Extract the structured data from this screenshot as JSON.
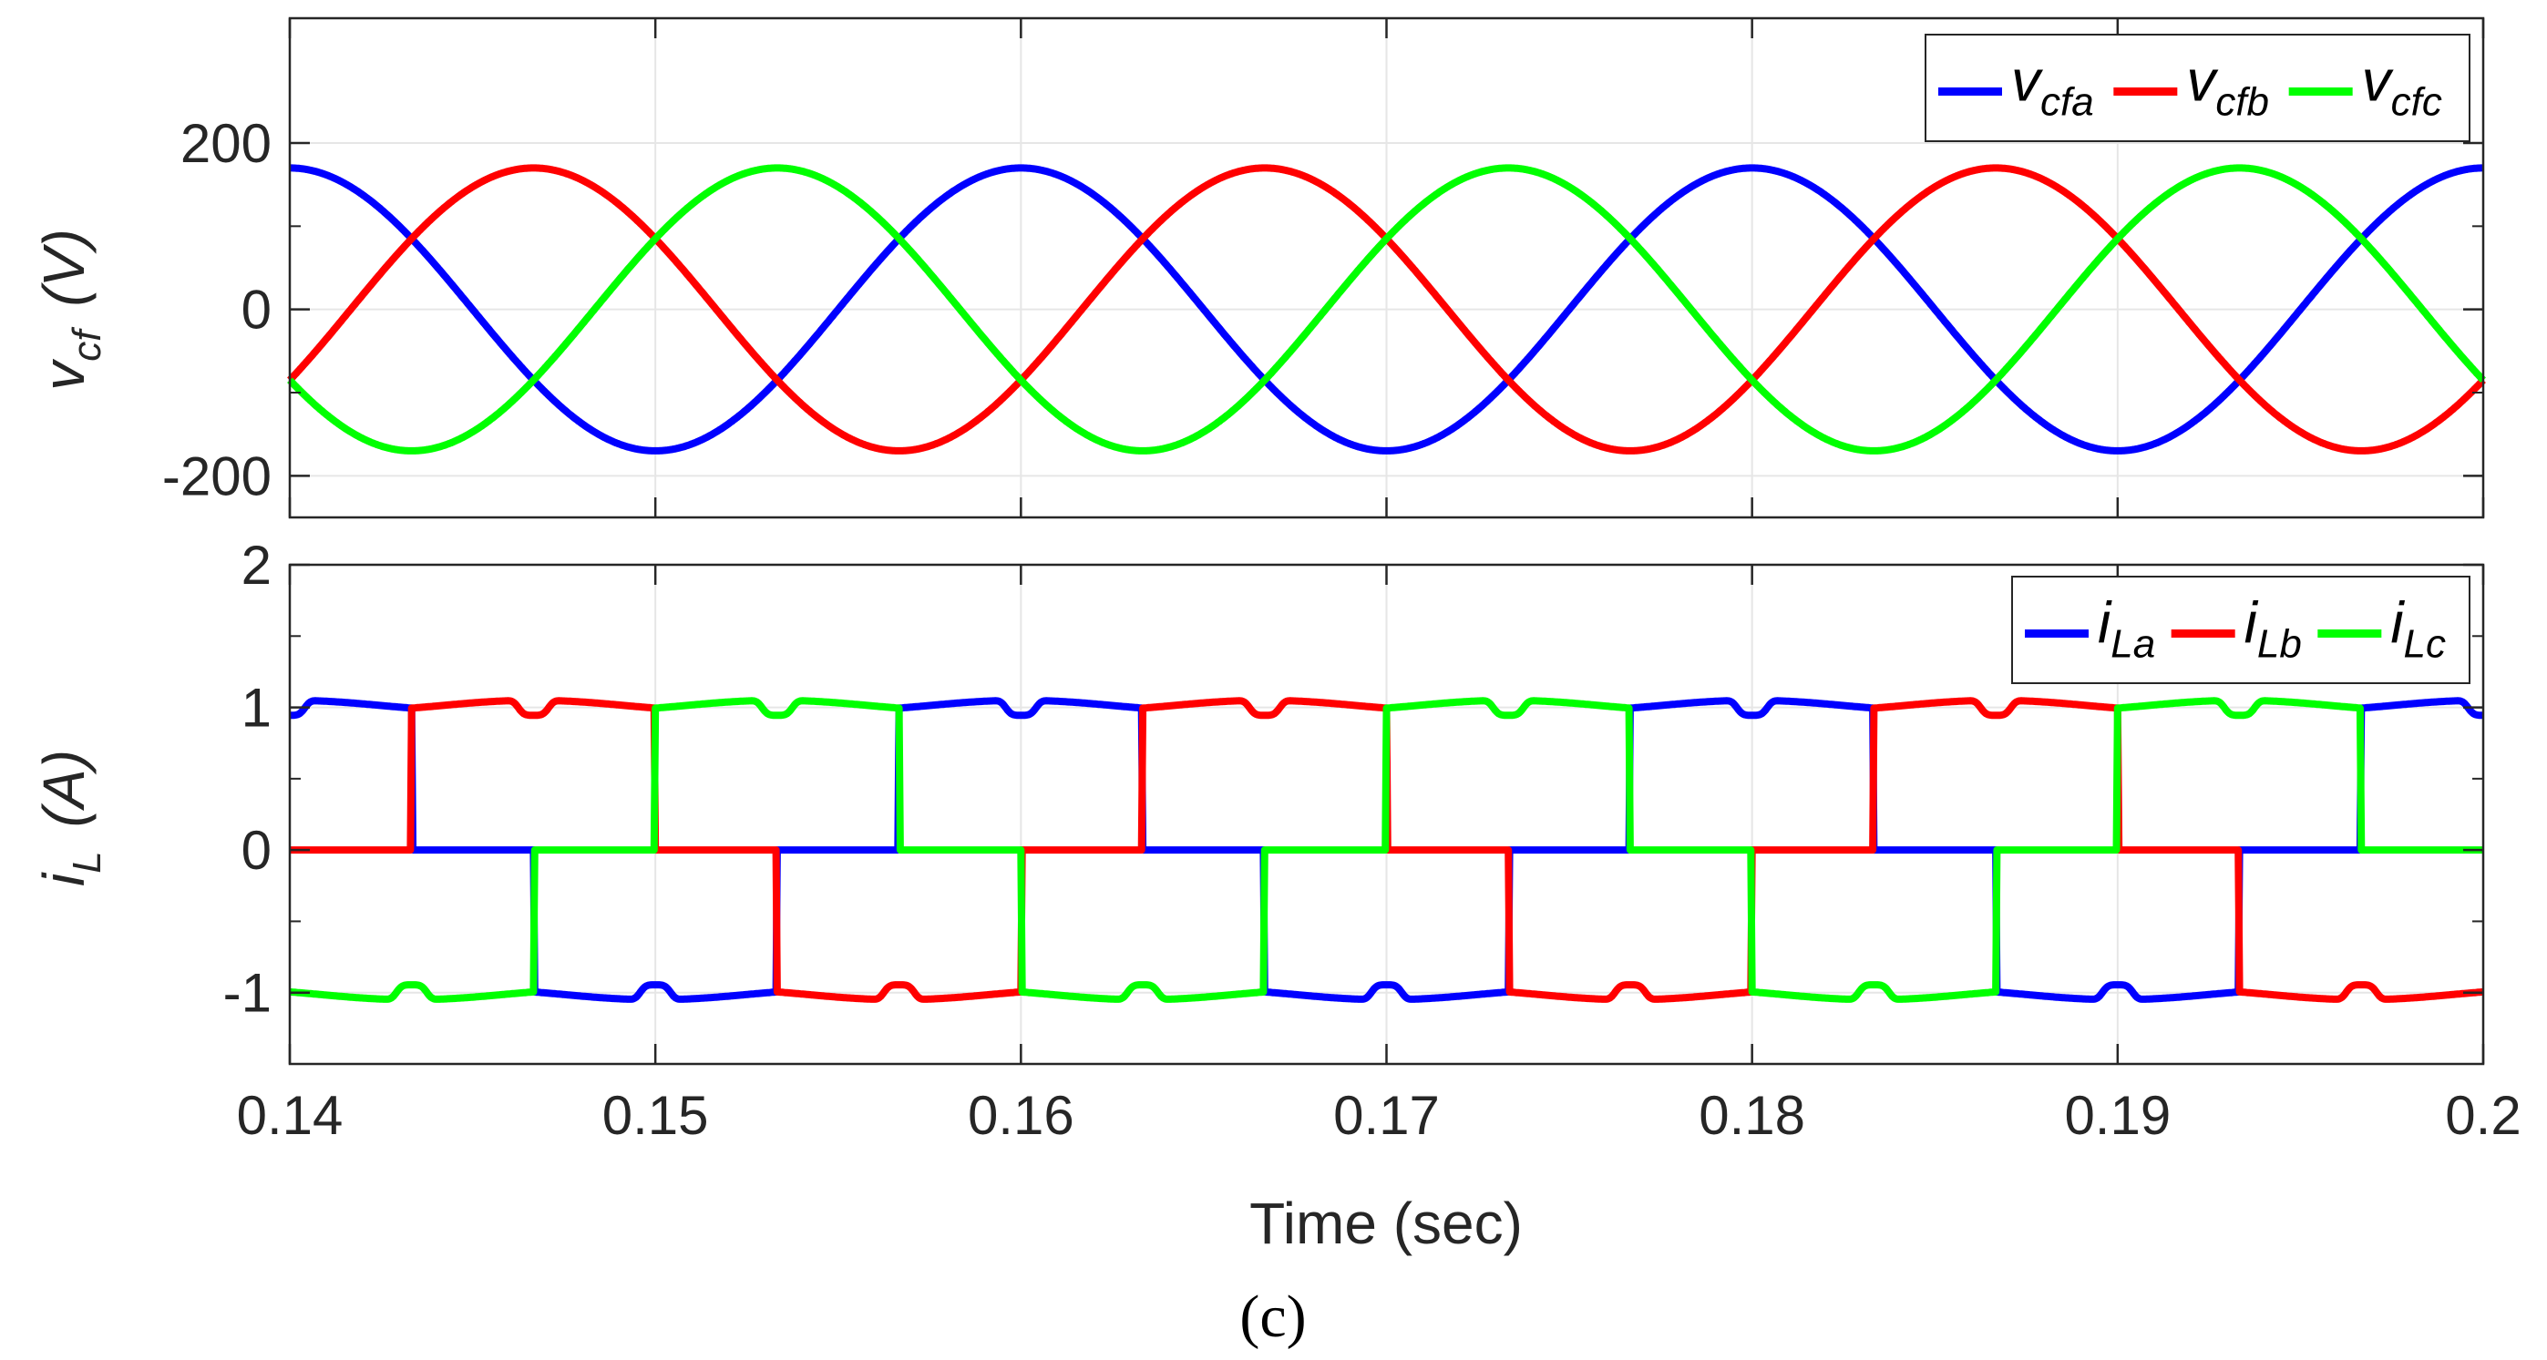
{
  "caption_label": "(c)",
  "chart_data": [
    {
      "type": "line",
      "id": "top",
      "ylabel_main": "v",
      "ylabel_sub": "cf",
      "ylabel_unit": "(V)",
      "xlim": [
        0.14,
        0.2
      ],
      "ylim": [
        -250,
        350
      ],
      "yticks": [
        -200,
        0,
        200
      ],
      "ytick_labels": [
        "-200",
        "0",
        "200"
      ],
      "grid": true,
      "legend_position": "top-right",
      "waveform": "sine",
      "frequency_hz": 50,
      "amplitude": 170,
      "series": [
        {
          "name": "v_cfa",
          "label_main": "v",
          "label_sub": "cfa",
          "color": "#0000ff",
          "phase_deg": 0
        },
        {
          "name": "v_cfb",
          "label_main": "v",
          "label_sub": "cfb",
          "color": "#ff0000",
          "phase_deg": -120
        },
        {
          "name": "v_cfc",
          "label_main": "v",
          "label_sub": "cfc",
          "color": "#00ff00",
          "phase_deg": 120
        }
      ]
    },
    {
      "type": "line",
      "id": "bottom",
      "ylabel_main": "i",
      "ylabel_sub": "L",
      "ylabel_unit": "(A)",
      "xlim": [
        0.14,
        0.2
      ],
      "ylim": [
        -1.5,
        2
      ],
      "yticks": [
        -1,
        0,
        1,
        2
      ],
      "ytick_labels": [
        "-1",
        "0",
        "1",
        "2"
      ],
      "xticks": [
        0.14,
        0.15,
        0.16,
        0.17,
        0.18,
        0.19,
        0.2
      ],
      "xtick_labels": [
        "0.14",
        "0.15",
        "0.16",
        "0.17",
        "0.18",
        "0.19",
        "0.2"
      ],
      "xlabel": "Time (sec)",
      "grid": true,
      "legend_position": "top-right",
      "waveform": "six-pulse rectifier current",
      "frequency_hz": 50,
      "amplitude": 1.05,
      "series": [
        {
          "name": "i_La",
          "label_main": "i",
          "label_sub": "La",
          "color": "#0000ff",
          "phase_deg": 0
        },
        {
          "name": "i_Lb",
          "label_main": "i",
          "label_sub": "Lb",
          "color": "#ff0000",
          "phase_deg": -120
        },
        {
          "name": "i_Lc",
          "label_main": "i",
          "label_sub": "Lc",
          "color": "#00ff00",
          "phase_deg": 120
        }
      ]
    }
  ]
}
